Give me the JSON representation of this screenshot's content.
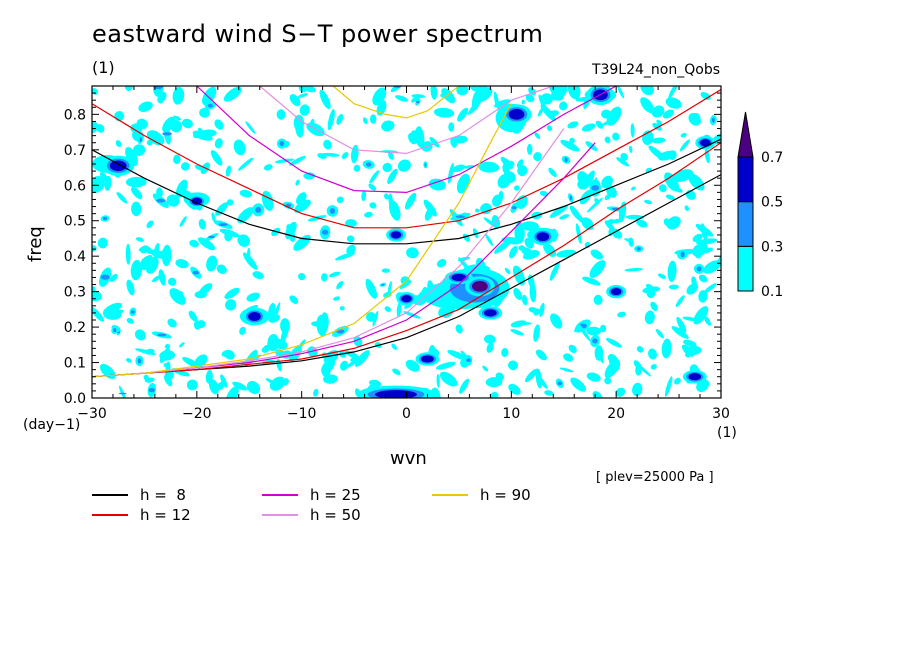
{
  "chart_data": {
    "type": "heatmap",
    "title": "eastward wind S−T power spectrum",
    "subtitle_left": "(1)",
    "subtitle_right": "T39L24_non_Qobs",
    "xlabel": "wvn",
    "ylabel": "freq",
    "x_unit": "(1)",
    "y_unit": "(day−1)",
    "xlim": [
      -30,
      30
    ],
    "ylim": [
      0,
      0.88
    ],
    "x_ticks": [
      -30,
      -20,
      -10,
      0,
      10,
      20,
      30
    ],
    "x_tick_labels": [
      "−30",
      "−20",
      "−10",
      "0",
      "10",
      "20",
      "30"
    ],
    "y_ticks": [
      0.0,
      0.1,
      0.2,
      0.3,
      0.4,
      0.5,
      0.6,
      0.7,
      0.8
    ],
    "y_tick_labels": [
      "0.0",
      "0.1",
      "0.2",
      "0.3",
      "0.4",
      "0.5",
      "0.6",
      "0.7",
      "0.8"
    ],
    "annotation": "[ plev=25000 Pa ]",
    "colorbar": {
      "levels": [
        0.1,
        0.3,
        0.5,
        0.7
      ],
      "labels": [
        "0.1",
        "0.3",
        "0.5",
        "0.7"
      ],
      "colors": [
        "#00ffff",
        "#1e90ff",
        "#0000cd",
        "#4b0082"
      ],
      "extend": "max"
    },
    "series": [
      {
        "name": "h =  8",
        "color": "#000000",
        "branches": [
          {
            "x": [
              -30,
              -25,
              -20,
              -15,
              -10,
              -5,
              0,
              5,
              10,
              15,
              20,
              25,
              30
            ],
            "y": [
              0.7,
              0.62,
              0.55,
              0.49,
              0.45,
              0.435,
              0.435,
              0.45,
              0.49,
              0.54,
              0.6,
              0.66,
              0.73
            ]
          },
          {
            "x": [
              -30,
              -25,
              -20,
              -15,
              -10,
              -5,
              0,
              5,
              10,
              15,
              20,
              25,
              30
            ],
            "y": [
              0.06,
              0.07,
              0.08,
              0.09,
              0.105,
              0.13,
              0.17,
              0.23,
              0.31,
              0.39,
              0.47,
              0.55,
              0.63
            ]
          }
        ]
      },
      {
        "name": "h = 12",
        "color": "#e00000",
        "branches": [
          {
            "x": [
              -30,
              -25,
              -20,
              -15,
              -10,
              -5,
              0,
              5,
              10,
              15,
              20,
              25,
              30
            ],
            "y": [
              0.83,
              0.74,
              0.66,
              0.59,
              0.52,
              0.48,
              0.48,
              0.5,
              0.55,
              0.62,
              0.7,
              0.78,
              0.87
            ]
          },
          {
            "x": [
              -30,
              -25,
              -20,
              -15,
              -10,
              -5,
              0,
              5,
              10,
              15,
              20,
              25,
              30
            ],
            "y": [
              0.06,
              0.07,
              0.08,
              0.095,
              0.11,
              0.14,
              0.19,
              0.25,
              0.34,
              0.43,
              0.53,
              0.62,
              0.72
            ]
          }
        ]
      },
      {
        "name": "h = 25",
        "color": "#d000d0",
        "branches": [
          {
            "x": [
              -20,
              -15,
              -10,
              -5,
              0,
              5,
              10,
              15,
              20
            ],
            "y": [
              0.88,
              0.74,
              0.64,
              0.585,
              0.58,
              0.63,
              0.71,
              0.8,
              0.88
            ]
          },
          {
            "x": [
              -30,
              -25,
              -20,
              -15,
              -10,
              -5,
              0,
              5,
              10,
              15,
              18
            ],
            "y": [
              0.06,
              0.07,
              0.085,
              0.1,
              0.125,
              0.16,
              0.22,
              0.32,
              0.47,
              0.62,
              0.72
            ]
          }
        ]
      },
      {
        "name": "h = 50",
        "color": "#e090e0",
        "branches": [
          {
            "x": [
              -14,
              -10,
              -5,
              0,
              5,
              10,
              14
            ],
            "y": [
              0.88,
              0.78,
              0.7,
              0.69,
              0.74,
              0.84,
              0.88
            ]
          },
          {
            "x": [
              -30,
              -25,
              -20,
              -15,
              -10,
              -5,
              0,
              5,
              10,
              15
            ],
            "y": [
              0.06,
              0.07,
              0.085,
              0.105,
              0.13,
              0.17,
              0.24,
              0.37,
              0.55,
              0.76
            ]
          }
        ]
      },
      {
        "name": "h = 90",
        "color": "#e8c800",
        "branches": [
          {
            "x": [
              -7,
              -5,
              -2,
              0,
              2,
              5
            ],
            "y": [
              0.88,
              0.83,
              0.8,
              0.79,
              0.81,
              0.88
            ]
          },
          {
            "x": [
              -30,
              -25,
              -20,
              -15,
              -10,
              -5,
              0,
              5,
              8,
              10
            ],
            "y": [
              0.06,
              0.07,
              0.09,
              0.11,
              0.15,
              0.21,
              0.33,
              0.55,
              0.72,
              0.83
            ]
          }
        ]
      }
    ],
    "features": [
      {
        "x": -27.5,
        "y": 0.655,
        "w": 1.6,
        "h": 0.03,
        "level": 2
      },
      {
        "x": -28.5,
        "y": 0.66,
        "w": 3.0,
        "h": 0.05,
        "level": 0
      },
      {
        "x": 7,
        "y": 0.315,
        "w": 1.5,
        "h": 0.03,
        "level": 3
      },
      {
        "x": 6.5,
        "y": 0.31,
        "w": 3.5,
        "h": 0.06,
        "level": 1
      },
      {
        "x": 5,
        "y": 0.29,
        "w": 7,
        "h": 0.08,
        "level": 0
      },
      {
        "x": 10.5,
        "y": 0.8,
        "w": 1.5,
        "h": 0.03,
        "level": 2
      },
      {
        "x": 10,
        "y": 0.79,
        "w": 3,
        "h": 0.08,
        "level": 0
      },
      {
        "x": 18.5,
        "y": 0.855,
        "w": 1.4,
        "h": 0.03,
        "level": 2
      },
      {
        "x": 18.5,
        "y": 0.855,
        "w": 3,
        "h": 0.04,
        "level": 0
      },
      {
        "x": -14.5,
        "y": 0.23,
        "w": 1.2,
        "h": 0.025,
        "level": 2
      },
      {
        "x": -14.5,
        "y": 0.23,
        "w": 2.8,
        "h": 0.05,
        "level": 0
      },
      {
        "x": -20,
        "y": 0.555,
        "w": 1.0,
        "h": 0.02,
        "level": 2
      },
      {
        "x": -20,
        "y": 0.56,
        "w": 2.5,
        "h": 0.04,
        "level": 0
      },
      {
        "x": -1,
        "y": 0.01,
        "w": 4,
        "h": 0.025,
        "level": 2
      },
      {
        "x": -1,
        "y": 0.015,
        "w": 7,
        "h": 0.04,
        "level": 0
      },
      {
        "x": 5,
        "y": 0.34,
        "w": 1.4,
        "h": 0.02,
        "level": 2
      },
      {
        "x": 2,
        "y": 0.11,
        "w": 1.2,
        "h": 0.02,
        "level": 2
      },
      {
        "x": 13,
        "y": 0.455,
        "w": 1.2,
        "h": 0.025,
        "level": 2
      },
      {
        "x": 13,
        "y": 0.46,
        "w": 3,
        "h": 0.04,
        "level": 0
      },
      {
        "x": 20,
        "y": 0.3,
        "w": 1.0,
        "h": 0.02,
        "level": 2
      },
      {
        "x": 27.5,
        "y": 0.06,
        "w": 1.2,
        "h": 0.02,
        "level": 2
      },
      {
        "x": 28.5,
        "y": 0.72,
        "w": 1.0,
        "h": 0.02,
        "level": 2
      },
      {
        "x": 8,
        "y": 0.24,
        "w": 1.2,
        "h": 0.02,
        "level": 2
      },
      {
        "x": -1,
        "y": 0.46,
        "w": 1.0,
        "h": 0.02,
        "level": 2
      },
      {
        "x": 0,
        "y": 0.28,
        "w": 1.0,
        "h": 0.02,
        "level": 2
      }
    ]
  },
  "legend_label_prefix": "h ="
}
